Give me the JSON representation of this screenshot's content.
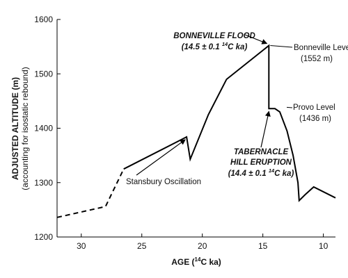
{
  "chart_data": {
    "type": "line",
    "xlabel": {
      "prefix": "AGE (",
      "sup": "14",
      "suffix": "C ka)"
    },
    "ylabel": "ADJUSTED ALTITUDE (m)",
    "ylabel_sub": "(accounting for isostatic rebound)",
    "xlim": [
      32,
      9
    ],
    "ylim": [
      1200,
      1600
    ],
    "x_ticks": [
      30,
      25,
      20,
      15,
      10
    ],
    "y_ticks": [
      1200,
      1300,
      1400,
      1500,
      1600
    ],
    "grid": false,
    "series": [
      {
        "style": "dashed",
        "points": [
          [
            32,
            1236
          ],
          [
            28,
            1256
          ],
          [
            26.5,
            1325
          ]
        ]
      },
      {
        "style": "solid",
        "points": [
          [
            26.5,
            1325
          ],
          [
            21.3,
            1384
          ],
          [
            21.0,
            1343
          ],
          [
            19.5,
            1425
          ],
          [
            18.0,
            1490
          ],
          [
            14.5,
            1552
          ],
          [
            14.5,
            1436
          ],
          [
            14.0,
            1436
          ],
          [
            13.6,
            1430
          ],
          [
            13.0,
            1395
          ],
          [
            12.5,
            1350
          ],
          [
            12.1,
            1300
          ],
          [
            12.0,
            1267
          ],
          [
            11.5,
            1278
          ],
          [
            10.8,
            1292
          ],
          [
            9.0,
            1272
          ]
        ]
      }
    ],
    "annotations": {
      "bonneville_flood_title": "BONNEVILLE FLOOD",
      "bonneville_flood_date": {
        "prefix": "(14.5 ± 0.1 ",
        "sup": "14",
        "suffix": "C ka)"
      },
      "bonneville_level": "Bonneville Level",
      "bonneville_level_value": "(1552 m)",
      "provo_level": "Provo Level",
      "provo_level_value": "(1436 m)",
      "tabernacle_line1": "TABERNACLE",
      "tabernacle_line2": "HILL ERUPTION",
      "tabernacle_date": {
        "prefix": "(14.4 ± 0.1 ",
        "sup": "14",
        "suffix": "C ka)"
      },
      "stansbury": "Stansbury Oscillation"
    }
  }
}
